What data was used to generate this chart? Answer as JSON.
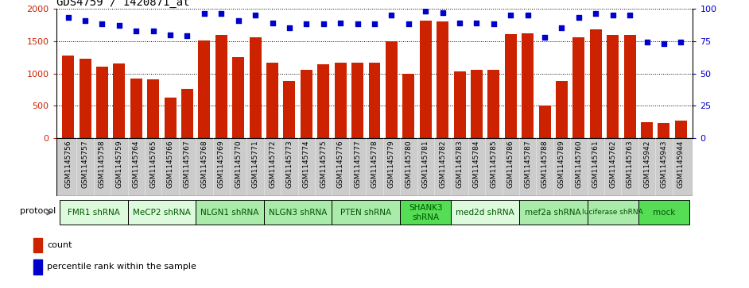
{
  "title": "GDS4759 / 1420871_at",
  "samples": [
    "GSM1145756",
    "GSM1145757",
    "GSM1145758",
    "GSM1145759",
    "GSM1145764",
    "GSM1145765",
    "GSM1145766",
    "GSM1145767",
    "GSM1145768",
    "GSM1145769",
    "GSM1145770",
    "GSM1145771",
    "GSM1145772",
    "GSM1145773",
    "GSM1145774",
    "GSM1145775",
    "GSM1145776",
    "GSM1145777",
    "GSM1145778",
    "GSM1145779",
    "GSM1145780",
    "GSM1145781",
    "GSM1145782",
    "GSM1145783",
    "GSM1145784",
    "GSM1145785",
    "GSM1145786",
    "GSM1145787",
    "GSM1145788",
    "GSM1145789",
    "GSM1145760",
    "GSM1145761",
    "GSM1145762",
    "GSM1145763",
    "GSM1145942",
    "GSM1145943",
    "GSM1145944"
  ],
  "counts": [
    1280,
    1230,
    1110,
    1150,
    920,
    910,
    630,
    760,
    1510,
    1600,
    1250,
    1560,
    1170,
    880,
    1050,
    1140,
    1160,
    1160,
    1160,
    1500,
    1000,
    1820,
    1800,
    1030,
    1050,
    1050,
    1610,
    1620,
    500,
    880,
    1560,
    1680,
    1600,
    1600,
    250,
    230,
    270
  ],
  "percentiles": [
    93,
    91,
    88,
    87,
    83,
    83,
    80,
    79,
    96,
    96,
    91,
    95,
    89,
    85,
    88,
    88,
    89,
    88,
    88,
    95,
    88,
    98,
    97,
    89,
    89,
    88,
    95,
    95,
    78,
    85,
    93,
    96,
    95,
    95,
    74,
    73,
    74
  ],
  "bar_color": "#cc2200",
  "dot_color": "#0000cc",
  "ylim_left": [
    0,
    2000
  ],
  "ylim_right": [
    0,
    100
  ],
  "yticks_left": [
    0,
    500,
    1000,
    1500,
    2000
  ],
  "yticks_right": [
    0,
    25,
    50,
    75,
    100
  ],
  "protocol_groups": [
    {
      "label": "FMR1 shRNA",
      "start": 0,
      "end": 4,
      "color": "#ddfadd"
    },
    {
      "label": "MeCP2 shRNA",
      "start": 4,
      "end": 8,
      "color": "#ddfadd"
    },
    {
      "label": "NLGN1 shRNA",
      "start": 8,
      "end": 12,
      "color": "#aaeaaa"
    },
    {
      "label": "NLGN3 shRNA",
      "start": 12,
      "end": 16,
      "color": "#aaeaaa"
    },
    {
      "label": "PTEN shRNA",
      "start": 16,
      "end": 20,
      "color": "#aaeaaa"
    },
    {
      "label": "SHANK3\nshRNA",
      "start": 20,
      "end": 23,
      "color": "#55dd55"
    },
    {
      "label": "med2d shRNA",
      "start": 23,
      "end": 27,
      "color": "#ddfadd"
    },
    {
      "label": "mef2a shRNA",
      "start": 27,
      "end": 31,
      "color": "#aaeaaa"
    },
    {
      "label": "luciferase shRNA",
      "start": 31,
      "end": 34,
      "color": "#aaeaaa"
    },
    {
      "label": "mock",
      "start": 34,
      "end": 37,
      "color": "#55dd55"
    }
  ],
  "xtick_bg": "#cccccc",
  "plot_bg": "#ffffff"
}
